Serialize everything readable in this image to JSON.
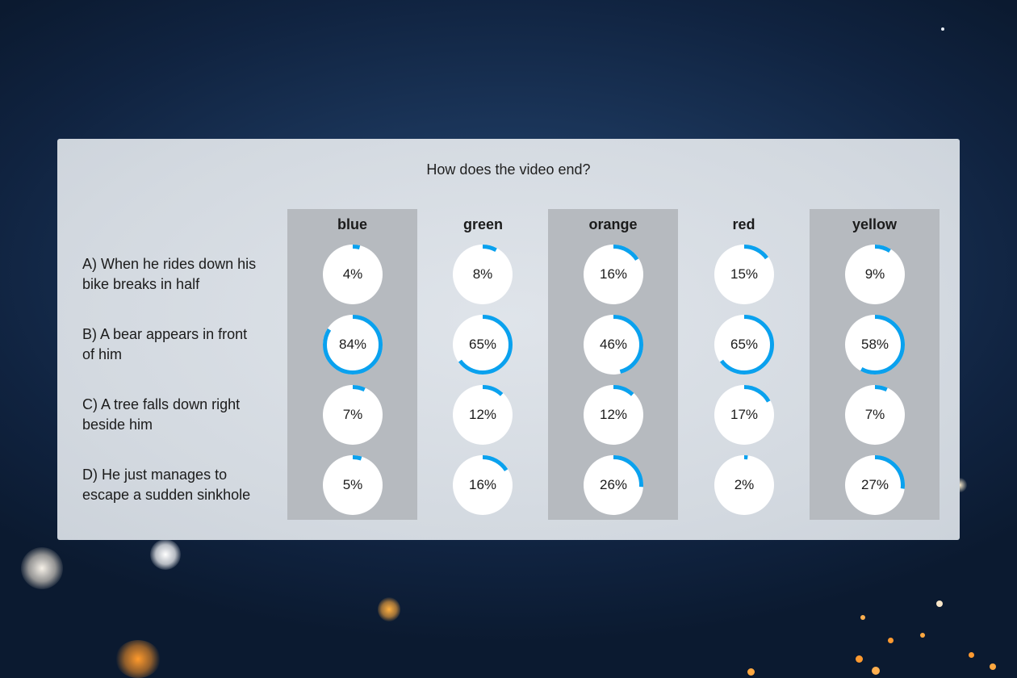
{
  "poll": {
    "question": "How does the video end?",
    "accent_color": "#0aa1ee",
    "columns": [
      {
        "key": "blue",
        "label": "blue",
        "shaded": true
      },
      {
        "key": "green",
        "label": "green",
        "shaded": false
      },
      {
        "key": "orange",
        "label": "orange",
        "shaded": true
      },
      {
        "key": "red",
        "label": "red",
        "shaded": false
      },
      {
        "key": "yellow",
        "label": "yellow",
        "shaded": true
      }
    ],
    "rows": [
      {
        "key": "A",
        "label_line1": "A) When he rides down his",
        "label_line2": "bike breaks in half",
        "values": [
          4,
          8,
          16,
          15,
          9
        ]
      },
      {
        "key": "B",
        "label_line1": "B) A bear appears in front",
        "label_line2": "of him",
        "values": [
          84,
          65,
          46,
          65,
          58
        ]
      },
      {
        "key": "C",
        "label_line1": "C) A tree falls down right",
        "label_line2": "beside him",
        "values": [
          7,
          12,
          12,
          17,
          7
        ]
      },
      {
        "key": "D",
        "label_line1": "D) He just manages to",
        "label_line2": "escape a sudden sinkhole",
        "values": [
          5,
          16,
          26,
          2,
          27
        ]
      }
    ]
  }
}
